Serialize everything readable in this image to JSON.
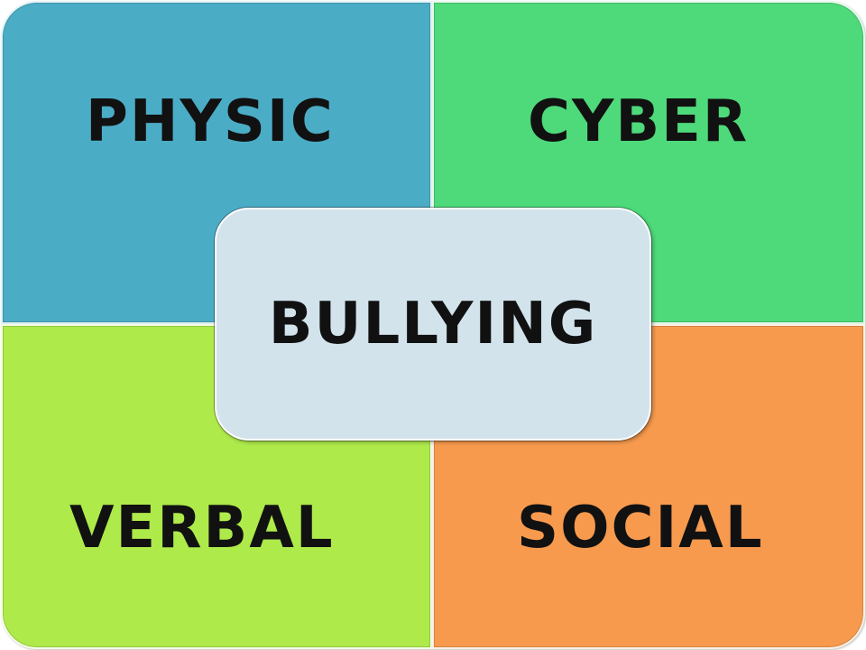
{
  "diagram": {
    "quadrants": [
      {
        "label": "PHYSIC",
        "color": "#4BACC6"
      },
      {
        "label": "CYBER",
        "color": "#4ED97A"
      },
      {
        "label": "VERBAL",
        "color": "#AEEA4A"
      },
      {
        "label": "SOCIAL",
        "color": "#F79A4E"
      }
    ],
    "center": {
      "label": "BULLYING",
      "color": "#D2E3EC"
    }
  }
}
